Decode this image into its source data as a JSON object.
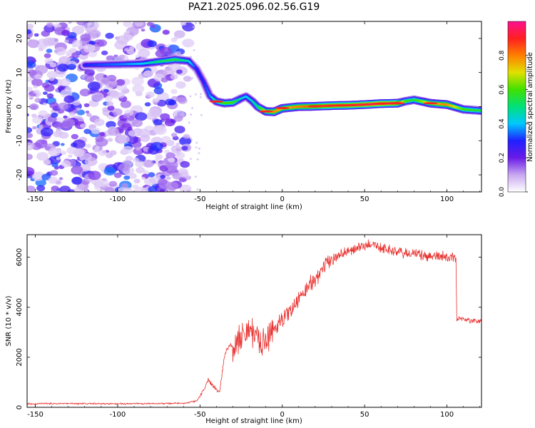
{
  "title": "PAZ1.2025.096.02.56.G19",
  "chart_data": [
    {
      "type": "heatmap",
      "xlabel": "Height of straight line (km)",
      "ylabel": "Frequency (Hz)",
      "xlim": [
        -155,
        121
      ],
      "ylim": [
        -25,
        25
      ],
      "xticks": [
        -150,
        -100,
        -50,
        0,
        50,
        100
      ],
      "yticks": [
        -20,
        -10,
        0,
        10,
        20
      ],
      "colorbar": {
        "label": "Normalized spectral amplitude",
        "range": [
          0,
          1
        ],
        "ticks": [
          0.0,
          0.2,
          0.4,
          0.6,
          0.8
        ],
        "colors": [
          "#ffffff",
          "#c8a8f0",
          "#6a1ae8",
          "#2020ff",
          "#00c8ff",
          "#00e07a",
          "#40e000",
          "#e0e000",
          "#ff8000",
          "#ff2020",
          "#ff1090"
        ]
      },
      "noise_region_x": [
        -155,
        -57
      ],
      "ridge": {
        "x": [
          -120,
          -100,
          -85,
          -75,
          -65,
          -57,
          -52,
          -48,
          -44,
          -40,
          -35,
          -30,
          -25,
          -22,
          -18,
          -15,
          -10,
          -5,
          0,
          10,
          20,
          30,
          40,
          50,
          60,
          70,
          75,
          80,
          90,
          100,
          110,
          121
        ],
        "y": [
          12.2,
          12.4,
          12.6,
          13.2,
          13.8,
          13.4,
          11.0,
          7.5,
          3.2,
          1.5,
          1.0,
          1.2,
          2.4,
          3.0,
          1.5,
          0.0,
          -1.4,
          -1.5,
          -0.5,
          0.0,
          0.1,
          0.3,
          0.4,
          0.6,
          0.9,
          1.0,
          1.6,
          2.0,
          1.0,
          0.6,
          -0.8,
          -1.2
        ],
        "amplitude": [
          0.3,
          0.35,
          0.4,
          0.5,
          0.55,
          0.45,
          0.3,
          0.3,
          0.35,
          0.5,
          0.6,
          0.6,
          0.45,
          0.4,
          0.45,
          0.5,
          0.7,
          0.8,
          0.75,
          0.8,
          0.85,
          0.9,
          0.9,
          0.92,
          0.95,
          0.9,
          0.6,
          0.55,
          0.75,
          0.8,
          0.6,
          0.55
        ]
      }
    },
    {
      "type": "line",
      "xlabel": "Height of straight line (km)",
      "ylabel": "SNR (10 * v/v)",
      "xlim": [
        -155,
        121
      ],
      "ylim": [
        0,
        6900
      ],
      "xticks": [
        -150,
        -100,
        -50,
        0,
        50,
        100
      ],
      "yticks": [
        0,
        2000,
        4000,
        6000
      ],
      "color": "#e8322f",
      "series": [
        {
          "x": [
            -155,
            -140,
            -120,
            -100,
            -80,
            -60,
            -52,
            -48,
            -45,
            -42,
            -38,
            -35,
            -32,
            -30,
            -27,
            -25,
            -22,
            -20,
            -18,
            -16,
            -14,
            -12,
            -10,
            -5,
            0,
            5,
            10,
            15,
            20,
            25,
            30,
            35,
            40,
            45,
            50,
            55,
            60,
            65,
            70,
            75,
            80,
            85,
            90,
            95,
            100,
            104,
            105.5,
            106,
            110,
            115,
            121
          ],
          "y": [
            140,
            150,
            150,
            140,
            150,
            160,
            250,
            650,
            1100,
            850,
            650,
            2100,
            2500,
            2400,
            2700,
            2800,
            3000,
            3200,
            2800,
            3000,
            2500,
            2400,
            2700,
            3200,
            3500,
            3900,
            4300,
            4750,
            5150,
            5550,
            5900,
            6100,
            6250,
            6350,
            6450,
            6550,
            6350,
            6300,
            6200,
            6150,
            6150,
            6050,
            6050,
            6050,
            6000,
            6050,
            5900,
            3550,
            3550,
            3450,
            3450
          ]
        }
      ]
    }
  ]
}
